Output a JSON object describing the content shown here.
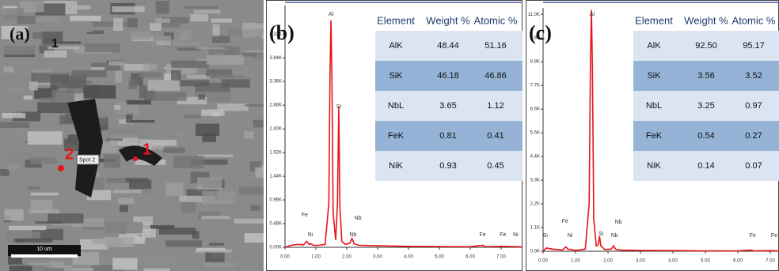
{
  "sem": {
    "panel_label": "(a)",
    "label_marker": "1",
    "spot_2_label": "2",
    "spot_2_tag": "Spot 2",
    "spot_1_label": "1",
    "scale_bar": "10 um"
  },
  "chart_data": [
    {
      "type": "line",
      "panel_label": "(b)",
      "color": "#e8141b",
      "x": [
        0,
        0.2,
        0.4,
        0.6,
        0.7,
        0.78,
        0.85,
        0.92,
        1.1,
        1.3,
        1.42,
        1.46,
        1.49,
        1.52,
        1.56,
        1.64,
        1.7,
        1.74,
        1.78,
        1.84,
        1.95,
        2.1,
        2.17,
        2.24,
        2.4,
        3,
        4,
        5,
        6,
        6.4,
        6.5,
        7,
        7.7
      ],
      "values": [
        0,
        40,
        60,
        50,
        120,
        60,
        70,
        40,
        40,
        60,
        900,
        3600,
        4600,
        3400,
        700,
        150,
        900,
        2850,
        800,
        120,
        60,
        80,
        180,
        70,
        40,
        30,
        20,
        15,
        12,
        40,
        12,
        20,
        10
      ],
      "xlim": [
        0,
        7.7
      ],
      "ylim": [
        0,
        4900
      ],
      "xticks": [
        {
          "value": 0,
          "label": "0.00"
        },
        {
          "value": 1,
          "label": "1.00"
        },
        {
          "value": 2,
          "label": "2.00"
        },
        {
          "value": 3,
          "label": "3.00"
        },
        {
          "value": 4,
          "label": "4.00"
        },
        {
          "value": 5,
          "label": "5.00"
        },
        {
          "value": 6,
          "label": "6.00"
        },
        {
          "value": 7,
          "label": "7.00"
        }
      ],
      "yticks": [
        {
          "value": 0,
          "label": "0.00K"
        },
        {
          "value": 480,
          "label": "0.48K"
        },
        {
          "value": 960,
          "label": "0.96K"
        },
        {
          "value": 1440,
          "label": "1.44K"
        },
        {
          "value": 1920,
          "label": "1.92K"
        },
        {
          "value": 2400,
          "label": "2.40K"
        },
        {
          "value": 2880,
          "label": "2.88K"
        },
        {
          "value": 3360,
          "label": "3.36K"
        },
        {
          "value": 3840,
          "label": "3.84K"
        },
        {
          "value": 4320,
          "label": "4.32K"
        }
      ],
      "annotations": [
        {
          "text": "Al",
          "x": 1.49,
          "y": 4720
        },
        {
          "text": "Si",
          "x": 1.74,
          "y": 2848
        },
        {
          "text": "Fe",
          "x": 0.64,
          "y": 656
        },
        {
          "text": "Ni",
          "x": 0.82,
          "y": 256
        },
        {
          "text": "Nb",
          "x": 2.36,
          "y": 592
        },
        {
          "text": "Nb",
          "x": 2.2,
          "y": 256
        },
        {
          "text": "Fe",
          "x": 6.4,
          "y": 256
        },
        {
          "text": "Fe",
          "x": 7.06,
          "y": 256
        },
        {
          "text": "Ni",
          "x": 7.47,
          "y": 256
        }
      ]
    },
    {
      "type": "line",
      "panel_label": "(c)",
      "color": "#e8141b",
      "x": [
        0,
        0.1,
        0.3,
        0.6,
        0.7,
        0.78,
        0.85,
        0.92,
        1.1,
        1.3,
        1.42,
        1.46,
        1.49,
        1.52,
        1.56,
        1.64,
        1.7,
        1.74,
        1.78,
        1.9,
        2.1,
        2.17,
        2.24,
        2.4,
        3,
        4,
        5,
        6,
        6.4,
        6.5,
        7,
        7.27
      ],
      "values": [
        0,
        150,
        100,
        60,
        200,
        80,
        90,
        50,
        60,
        100,
        2200,
        9000,
        11200,
        8500,
        1500,
        250,
        300,
        700,
        250,
        80,
        100,
        250,
        90,
        50,
        40,
        30,
        20,
        15,
        60,
        15,
        30,
        10
      ],
      "xlim": [
        0,
        7.27
      ],
      "ylim": [
        0,
        11300
      ],
      "xticks": [
        {
          "value": 0,
          "label": "0.00"
        },
        {
          "value": 1,
          "label": "1.00"
        },
        {
          "value": 2,
          "label": "2.00"
        },
        {
          "value": 3,
          "label": "3.00"
        },
        {
          "value": 4,
          "label": "4.00"
        },
        {
          "value": 5,
          "label": "5.00"
        },
        {
          "value": 6,
          "label": "6.00"
        },
        {
          "value": 7,
          "label": "7.00"
        }
      ],
      "yticks": [
        {
          "value": 0,
          "label": "0.0K"
        },
        {
          "value": 1100,
          "label": "1.1K"
        },
        {
          "value": 2200,
          "label": "2.2K"
        },
        {
          "value": 3300,
          "label": "3.3K"
        },
        {
          "value": 4400,
          "label": "4.4K"
        },
        {
          "value": 5500,
          "label": "5.5K"
        },
        {
          "value": 6600,
          "label": "6.6K"
        },
        {
          "value": 7700,
          "label": "7.7K"
        },
        {
          "value": 8800,
          "label": "8.8K"
        },
        {
          "value": 9900,
          "label": "9.9K"
        },
        {
          "value": 11000,
          "label": "11.0K"
        }
      ],
      "annotations": [
        {
          "text": "Al",
          "x": 1.51,
          "y": 11000
        },
        {
          "text": "Fe",
          "x": 0.68,
          "y": 1393
        },
        {
          "text": "Ni",
          "x": 0.83,
          "y": 733
        },
        {
          "text": "Si",
          "x": 0.07,
          "y": 733
        },
        {
          "text": "Si",
          "x": 1.78,
          "y": 807
        },
        {
          "text": "Nb",
          "x": 2.32,
          "y": 1357
        },
        {
          "text": "Nb",
          "x": 2.2,
          "y": 733
        },
        {
          "text": "Fe",
          "x": 6.46,
          "y": 733
        },
        {
          "text": "Fe",
          "x": 7.12,
          "y": 733
        }
      ]
    }
  ],
  "tables": [
    {
      "header": [
        "Element",
        "Weight %",
        "Atomic %"
      ],
      "rows": [
        [
          "AlK",
          "48.44",
          "51.16"
        ],
        [
          "SiK",
          "46.18",
          "46.86"
        ],
        [
          "NbL",
          "3.65",
          "1.12"
        ],
        [
          "FeK",
          "0.81",
          "0.41"
        ],
        [
          "NiK",
          "0.93",
          "0.45"
        ]
      ]
    },
    {
      "header": [
        "Element",
        "Weight %",
        "Atomic %"
      ],
      "rows": [
        [
          "AlK",
          "92.50",
          "95.17"
        ],
        [
          "SiK",
          "3.56",
          "3.52"
        ],
        [
          "NbL",
          "3.25",
          "0.97"
        ],
        [
          "FeK",
          "0.54",
          "0.27"
        ],
        [
          "NiK",
          "0.14",
          "0.07"
        ]
      ]
    }
  ]
}
